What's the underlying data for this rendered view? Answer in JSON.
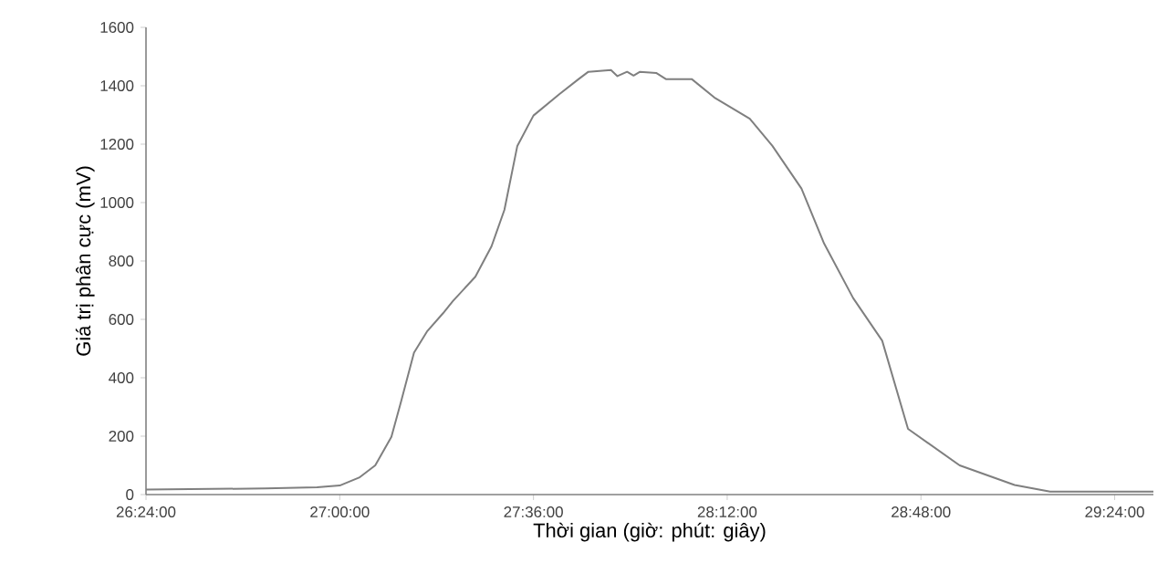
{
  "chart_data": {
    "type": "line",
    "xlabel": "Thời gian (giờ: phút: giây)",
    "ylabel": "Giá trị phân cực (mV)",
    "xlim": [
      26.4,
      29.52
    ],
    "ylim": [
      0,
      1600
    ],
    "xticks": [
      {
        "value": 26.4,
        "label": "26:24:00"
      },
      {
        "value": 27.0,
        "label": "27:00:00"
      },
      {
        "value": 27.6,
        "label": "27:36:00"
      },
      {
        "value": 28.2,
        "label": "28:12:00"
      },
      {
        "value": 28.8,
        "label": "28:48:00"
      },
      {
        "value": 29.4,
        "label": "29:24:00"
      }
    ],
    "yticks": [
      0,
      200,
      400,
      600,
      800,
      1000,
      1200,
      1400,
      1600
    ],
    "marker": "none",
    "line_style": "solid",
    "series": [
      {
        "color": "#7f7f7f",
        "x": [
          26.4,
          26.77,
          26.93,
          27.0,
          27.06,
          27.11,
          27.16,
          27.19,
          27.23,
          27.27,
          27.32,
          27.35,
          27.42,
          27.47,
          27.51,
          27.55,
          27.6,
          27.68,
          27.74,
          27.77,
          27.84,
          27.86,
          27.89,
          27.91,
          27.93,
          27.98,
          28.01,
          28.09,
          28.16,
          28.27,
          28.34,
          28.43,
          28.5,
          28.59,
          28.68,
          28.76,
          28.92,
          29.09,
          29.2,
          29.52
        ],
        "values": [
          17,
          21,
          25,
          31,
          58,
          100,
          198,
          319,
          486,
          558,
          621,
          662,
          746,
          850,
          975,
          1194,
          1298,
          1371,
          1423,
          1448,
          1454,
          1433,
          1448,
          1435,
          1448,
          1444,
          1423,
          1423,
          1360,
          1287,
          1194,
          1048,
          860,
          673,
          527,
          225,
          100,
          33,
          10,
          10
        ]
      }
    ]
  }
}
